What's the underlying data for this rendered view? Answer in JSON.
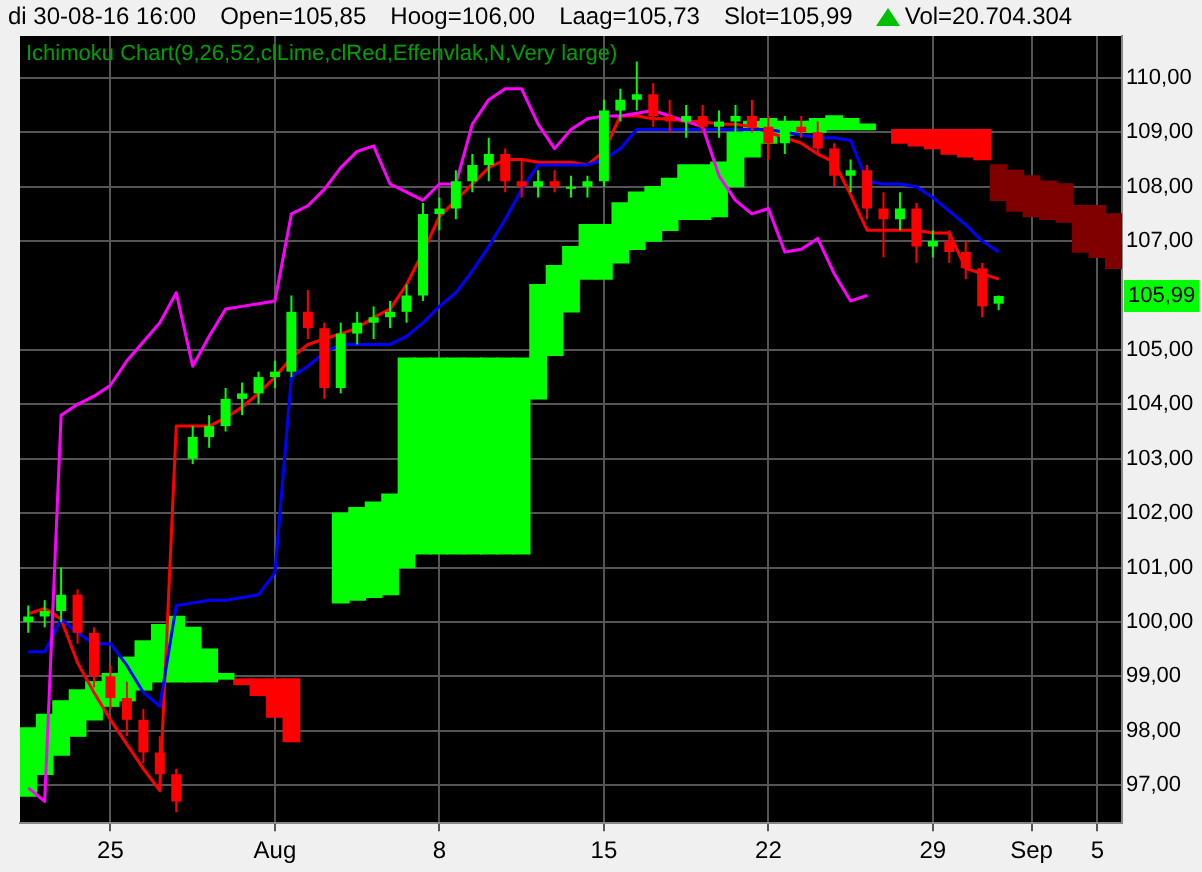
{
  "chart_data": {
    "type": "candlestick",
    "title": "Ichimoku Chart(9,26,52,clLime,clRed,Effenvlak,N,Very large)",
    "annotations": [
      "di 30-08-16 16:00",
      "Open=105,85",
      "Hoog=106,00",
      "Laag=105,73",
      "Slot=105,99",
      "Vol=20.704.304",
      {
        "text": "105,99",
        "y": 105.99
      }
    ],
    "categories": [
      null,
      null,
      null,
      null,
      null,
      "25",
      null,
      null,
      null,
      null,
      null,
      null,
      null,
      null,
      null,
      "Aug",
      null,
      null,
      null,
      null,
      null,
      null,
      null,
      null,
      null,
      "8",
      null,
      null,
      null,
      null,
      null,
      null,
      null,
      null,
      null,
      "15",
      null,
      null,
      null,
      null,
      null,
      null,
      null,
      null,
      null,
      "22",
      null,
      null,
      null,
      null,
      null,
      null,
      null,
      null,
      null,
      "29",
      null,
      null,
      null,
      null,
      null,
      "Sep",
      null,
      null,
      null,
      "5",
      null
    ],
    "ohlc": [
      [
        100.0,
        100.3,
        99.8,
        100.1
      ],
      [
        100.1,
        100.4,
        99.9,
        100.2
      ],
      [
        100.2,
        101.0,
        100.0,
        100.5
      ],
      [
        100.5,
        100.6,
        99.6,
        99.8
      ],
      [
        99.8,
        99.9,
        98.8,
        99.0
      ],
      [
        99.0,
        99.2,
        98.4,
        98.6
      ],
      [
        98.6,
        98.9,
        97.9,
        98.2
      ],
      [
        98.2,
        98.4,
        97.4,
        97.6
      ],
      [
        97.6,
        97.9,
        96.9,
        97.2
      ],
      [
        97.2,
        97.3,
        96.5,
        96.7
      ],
      [
        103.0,
        103.6,
        102.9,
        103.4
      ],
      [
        103.4,
        103.8,
        103.2,
        103.6
      ],
      [
        103.6,
        104.3,
        103.5,
        104.1
      ],
      [
        104.1,
        104.4,
        103.8,
        104.2
      ],
      [
        104.2,
        104.6,
        104.0,
        104.5
      ],
      [
        104.5,
        104.8,
        104.3,
        104.6
      ],
      [
        104.6,
        106.0,
        104.5,
        105.7
      ],
      [
        105.7,
        106.1,
        105.2,
        105.4
      ],
      [
        105.4,
        105.5,
        104.1,
        104.3
      ],
      [
        104.3,
        105.5,
        104.2,
        105.3
      ],
      [
        105.3,
        105.7,
        105.1,
        105.5
      ],
      [
        105.5,
        105.8,
        105.2,
        105.6
      ],
      [
        105.6,
        105.9,
        105.4,
        105.7
      ],
      [
        105.7,
        106.2,
        105.5,
        106.0
      ],
      [
        106.0,
        107.7,
        105.9,
        107.5
      ],
      [
        107.5,
        107.8,
        107.2,
        107.6
      ],
      [
        107.6,
        108.3,
        107.4,
        108.1
      ],
      [
        108.1,
        108.6,
        107.9,
        108.4
      ],
      [
        108.4,
        108.9,
        108.1,
        108.6
      ],
      [
        108.6,
        108.7,
        107.9,
        108.1
      ],
      [
        108.1,
        108.5,
        107.8,
        108.0
      ],
      [
        108.0,
        108.3,
        107.8,
        108.1
      ],
      [
        108.1,
        108.3,
        107.9,
        108.0
      ],
      [
        108.0,
        108.2,
        107.8,
        108.0
      ],
      [
        108.0,
        108.2,
        107.8,
        108.1
      ],
      [
        108.1,
        109.6,
        108.0,
        109.4
      ],
      [
        109.4,
        109.8,
        109.2,
        109.6
      ],
      [
        109.6,
        110.3,
        109.4,
        109.7
      ],
      [
        109.7,
        109.9,
        109.1,
        109.3
      ],
      [
        109.3,
        109.6,
        109.0,
        109.2
      ],
      [
        109.2,
        109.5,
        108.9,
        109.3
      ],
      [
        109.3,
        109.5,
        109.0,
        109.1
      ],
      [
        109.1,
        109.4,
        108.9,
        109.2
      ],
      [
        109.2,
        109.5,
        109.0,
        109.3
      ],
      [
        109.3,
        109.6,
        109.0,
        109.1
      ],
      [
        109.1,
        109.3,
        108.5,
        108.8
      ],
      [
        108.8,
        109.3,
        108.6,
        109.1
      ],
      [
        109.1,
        109.3,
        108.9,
        109.0
      ],
      [
        109.0,
        109.2,
        108.6,
        108.7
      ],
      [
        108.7,
        108.8,
        108.0,
        108.2
      ],
      [
        108.2,
        108.5,
        107.9,
        108.3
      ],
      [
        108.3,
        108.4,
        107.4,
        107.6
      ],
      [
        107.6,
        107.9,
        106.7,
        107.4
      ],
      [
        107.4,
        107.9,
        107.2,
        107.6
      ],
      [
        107.6,
        107.7,
        106.6,
        106.9
      ],
      [
        106.9,
        107.2,
        106.7,
        107.0
      ],
      [
        107.0,
        107.2,
        106.6,
        106.8
      ],
      [
        106.8,
        107.0,
        106.3,
        106.5
      ],
      [
        106.5,
        106.6,
        105.6,
        105.8
      ],
      [
        105.85,
        106.0,
        105.73,
        105.99
      ],
      null,
      null,
      null,
      null,
      null,
      null,
      null
    ],
    "colors": [
      "#00ff00",
      "#00ff00",
      "#00ff00",
      "#ff0000",
      "#ff0000",
      "#ff0000",
      "#ff0000",
      "#ff0000",
      "#ff0000",
      "#ff0000",
      "#00ff00",
      "#00ff00",
      "#00ff00",
      "#00ff00",
      "#00ff00",
      "#00ff00",
      "#00ff00",
      "#ff0000",
      "#ff0000",
      "#00ff00",
      "#00ff00",
      "#00ff00",
      "#00ff00",
      "#00ff00",
      "#00ff00",
      "#00ff00",
      "#00ff00",
      "#00ff00",
      "#00ff00",
      "#ff0000",
      "#ff0000",
      "#00ff00",
      "#ff0000",
      "#00ff00",
      "#00ff00",
      "#00ff00",
      "#00ff00",
      "#00ff00",
      "#ff0000",
      "#ff0000",
      "#00ff00",
      "#ff0000",
      "#00ff00",
      "#00ff00",
      "#ff0000",
      "#ff0000",
      "#00ff00",
      "#ff0000",
      "#ff0000",
      "#ff0000",
      "#00ff00",
      "#ff0000",
      "#ff0000",
      "#00ff00",
      "#ff0000",
      "#00ff00",
      "#ff0000",
      "#ff0000",
      "#ff0000",
      "#00ff00",
      null,
      null,
      null,
      null,
      null,
      null,
      null
    ],
    "series": [
      {
        "type": "bar",
        "color": "#00ff00",
        "base": [
          96.8,
          97.2,
          97.55,
          97.9,
          98.2,
          98.45,
          98.55,
          98.75,
          98.9,
          98.9,
          98.9,
          98.9,
          98.95,
          null,
          null,
          null,
          null,
          null,
          null,
          100.35,
          100.4,
          100.45,
          100.5,
          101.0,
          101.25,
          101.25,
          101.25,
          101.25,
          101.25,
          101.25,
          101.25,
          104.1,
          104.9,
          105.7,
          106.3,
          106.3,
          106.6,
          106.85,
          107.0,
          107.2,
          107.4,
          107.4,
          107.45,
          108.0,
          108.55,
          108.8,
          108.95,
          109.0,
          109.0,
          109.05,
          109.05,
          109.05,
          null,
          null,
          null,
          null,
          null,
          null,
          null,
          null,
          null,
          null,
          null,
          null,
          null,
          null,
          null
        ],
        "values": [
          1.25,
          1.1,
          1.0,
          0.85,
          0.7,
          0.6,
          0.8,
          0.9,
          1.05,
          1.2,
          1.0,
          0.6,
          0.1,
          null,
          null,
          null,
          null,
          null,
          null,
          1.65,
          1.7,
          1.75,
          1.85,
          3.85,
          3.6,
          3.6,
          3.6,
          3.6,
          3.6,
          3.6,
          3.6,
          2.1,
          1.65,
          1.2,
          1.0,
          1.0,
          1.1,
          1.05,
          1.0,
          0.95,
          1.0,
          1.0,
          1.0,
          1.0,
          0.65,
          0.45,
          0.25,
          0.2,
          0.25,
          0.25,
          0.2,
          0.1,
          null,
          null,
          null,
          null,
          null,
          null,
          null,
          null,
          null,
          null,
          null,
          null,
          null,
          null,
          null
        ]
      },
      {
        "type": "bar",
        "color": "#ff0000",
        "base": [
          null,
          null,
          null,
          null,
          null,
          null,
          null,
          null,
          null,
          null,
          null,
          null,
          null,
          98.85,
          98.65,
          98.25,
          97.8,
          null,
          null,
          null,
          null,
          null,
          null,
          null,
          null,
          null,
          null,
          null,
          null,
          null,
          null,
          null,
          null,
          null,
          null,
          null,
          null,
          null,
          null,
          null,
          null,
          null,
          null,
          null,
          null,
          null,
          null,
          null,
          null,
          null,
          null,
          null,
          null,
          108.8,
          108.75,
          108.7,
          108.6,
          108.55,
          108.5,
          null,
          null,
          null,
          null,
          null,
          null,
          null,
          null
        ],
        "values": [
          null,
          null,
          null,
          null,
          null,
          null,
          null,
          null,
          null,
          null,
          null,
          null,
          null,
          0.1,
          0.3,
          0.7,
          1.15,
          null,
          null,
          null,
          null,
          null,
          null,
          null,
          null,
          null,
          null,
          null,
          null,
          null,
          null,
          null,
          null,
          null,
          null,
          null,
          null,
          null,
          null,
          null,
          null,
          null,
          null,
          null,
          null,
          null,
          null,
          null,
          null,
          null,
          null,
          null,
          null,
          0.25,
          0.3,
          0.35,
          0.45,
          0.5,
          0.55,
          null,
          null,
          null,
          null,
          null,
          null,
          null,
          null
        ]
      },
      {
        "type": "bar",
        "color": "#800000",
        "base": [
          null,
          null,
          null,
          null,
          null,
          null,
          null,
          null,
          null,
          null,
          null,
          null,
          null,
          null,
          null,
          null,
          null,
          null,
          null,
          null,
          null,
          null,
          null,
          null,
          null,
          null,
          null,
          null,
          null,
          null,
          null,
          null,
          null,
          null,
          null,
          null,
          null,
          null,
          null,
          null,
          null,
          null,
          null,
          null,
          null,
          null,
          null,
          null,
          null,
          null,
          null,
          null,
          null,
          null,
          null,
          null,
          null,
          null,
          null,
          107.75,
          107.55,
          107.45,
          107.4,
          107.35,
          106.8,
          106.7,
          106.5
        ],
        "values": [
          null,
          null,
          null,
          null,
          null,
          null,
          null,
          null,
          null,
          null,
          null,
          null,
          null,
          null,
          null,
          null,
          null,
          null,
          null,
          null,
          null,
          null,
          null,
          null,
          null,
          null,
          null,
          null,
          null,
          null,
          null,
          null,
          null,
          null,
          null,
          null,
          null,
          null,
          null,
          null,
          null,
          null,
          null,
          null,
          null,
          null,
          null,
          null,
          null,
          null,
          null,
          null,
          null,
          null,
          null,
          null,
          null,
          null,
          null,
          0.65,
          0.75,
          0.75,
          0.7,
          0.7,
          0.85,
          0.95,
          1.0
        ]
      },
      {
        "type": "line",
        "color": "#ff00ff",
        "values": [
          96.95,
          96.7,
          103.8,
          104.0,
          104.15,
          104.35,
          104.8,
          105.15,
          105.5,
          106.05,
          104.7,
          105.25,
          105.75,
          105.8,
          105.85,
          105.9,
          107.5,
          107.65,
          107.95,
          108.35,
          108.65,
          108.75,
          108.05,
          107.9,
          107.75,
          108.05,
          108.05,
          109.15,
          109.6,
          109.8,
          109.8,
          109.15,
          108.7,
          109.05,
          109.25,
          109.3,
          109.3,
          109.35,
          109.4,
          109.3,
          109.2,
          109.1,
          108.2,
          107.75,
          107.5,
          107.6,
          106.8,
          106.85,
          107.05,
          106.4,
          105.9,
          106.0,
          null,
          null,
          null,
          null,
          null,
          null,
          null,
          null,
          null,
          null,
          null,
          null,
          null,
          null,
          null
        ]
      },
      {
        "type": "line",
        "color": "#0000ff",
        "values": [
          99.45,
          99.45,
          100.05,
          99.8,
          99.6,
          99.6,
          99.2,
          98.7,
          98.45,
          100.3,
          100.35,
          100.4,
          100.4,
          100.45,
          100.5,
          100.9,
          104.5,
          104.7,
          104.95,
          105.1,
          105.1,
          105.1,
          105.1,
          105.25,
          105.5,
          105.8,
          106.05,
          106.45,
          106.9,
          107.4,
          107.95,
          108.4,
          108.4,
          108.4,
          108.4,
          108.5,
          108.7,
          109.05,
          109.05,
          109.05,
          109.05,
          109.05,
          109.05,
          109.05,
          109.05,
          109.05,
          109.0,
          108.95,
          108.9,
          108.9,
          108.85,
          108.1,
          108.05,
          108.05,
          108.0,
          107.8,
          107.55,
          107.3,
          107.0,
          106.8,
          null,
          null,
          null,
          null,
          null,
          null,
          null
        ]
      },
      {
        "type": "line",
        "color": "#ff0000",
        "values": [
          100.15,
          100.25,
          100.05,
          99.25,
          98.7,
          98.2,
          97.75,
          97.3,
          96.9,
          103.6,
          103.6,
          103.6,
          103.75,
          103.95,
          104.2,
          104.5,
          104.85,
          105.1,
          105.2,
          105.3,
          105.4,
          105.6,
          105.75,
          106.2,
          106.8,
          107.45,
          107.75,
          108.05,
          108.35,
          108.5,
          108.5,
          108.45,
          108.45,
          108.45,
          108.4,
          108.65,
          109.3,
          109.3,
          109.25,
          109.25,
          109.2,
          109.2,
          109.15,
          109.15,
          109.1,
          109.0,
          108.9,
          108.8,
          108.6,
          108.45,
          107.85,
          107.2,
          107.2,
          107.2,
          107.2,
          107.15,
          107.15,
          106.5,
          106.4,
          106.3,
          null,
          null,
          null,
          null,
          null,
          null,
          null
        ]
      }
    ],
    "ylim": [
      96.3,
      110.77
    ],
    "yticks": [
      {
        "value": 97,
        "label": "97,00"
      },
      {
        "value": 98,
        "label": "98,00"
      },
      {
        "value": 99,
        "label": "99,00"
      },
      {
        "value": 100,
        "label": "100,00"
      },
      {
        "value": 101,
        "label": "101,00"
      },
      {
        "value": 102,
        "label": "102,00"
      },
      {
        "value": 103,
        "label": "103,00"
      },
      {
        "value": 104,
        "label": "104,00"
      },
      {
        "value": 105,
        "label": "105,00"
      },
      {
        "value": 107,
        "label": "107,00"
      },
      {
        "value": 108,
        "label": "108,00"
      },
      {
        "value": 109,
        "label": "109,00"
      },
      {
        "value": 110,
        "label": "110,00"
      }
    ],
    "grid": true
  }
}
